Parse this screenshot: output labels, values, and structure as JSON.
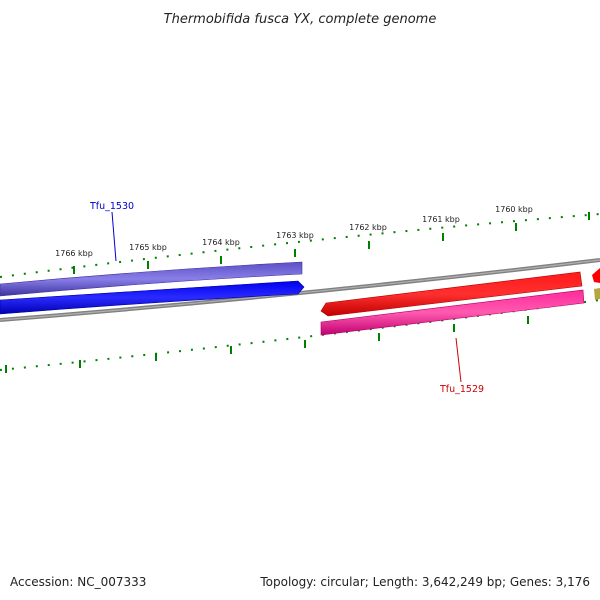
{
  "title": "Thermobifida fusca YX, complete genome",
  "footer": {
    "accession": "Accession: NC_007333",
    "summary": "Topology: circular; Length: 3,642,249 bp; Genes: 3,176"
  },
  "ticks": [
    {
      "label": "1766 kbp"
    },
    {
      "label": "1765 kbp"
    },
    {
      "label": "1764 kbp"
    },
    {
      "label": "1763 kbp"
    },
    {
      "label": "1762 kbp"
    },
    {
      "label": "1761 kbp"
    },
    {
      "label": "1760 kbp"
    }
  ],
  "genes": [
    {
      "name": "Tfu_1530",
      "strand": "reverse",
      "color": "#0000ff"
    },
    {
      "name": "Tfu_1529",
      "strand": "forward",
      "color": "#ff0000"
    }
  ],
  "colors": {
    "backbone": "#808080",
    "tick": "#008000",
    "cds_reverse": "#6a5acd",
    "gene_reverse": "#0000ff",
    "gene_forward": "#ff0000",
    "cds_forward": "#ff1493",
    "partial_feature": "#b5a642"
  }
}
